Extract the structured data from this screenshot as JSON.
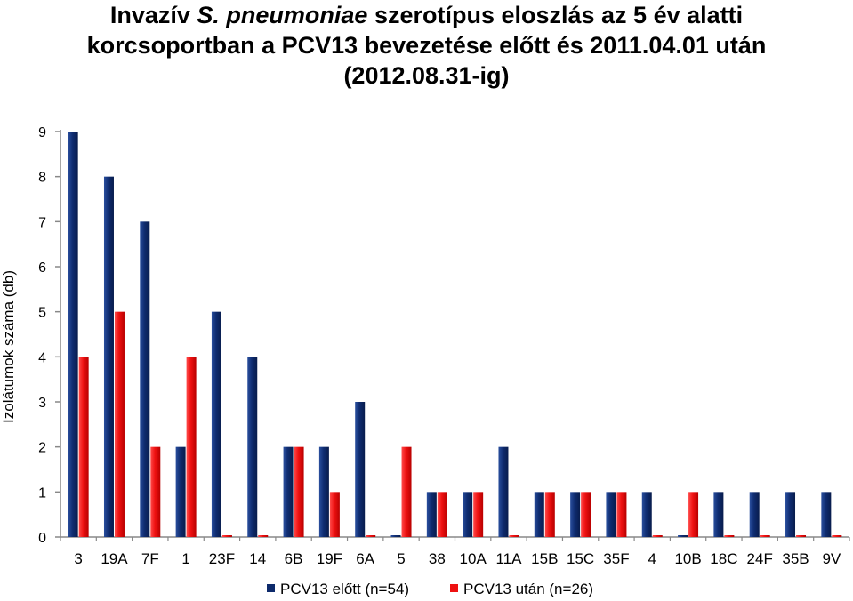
{
  "title": {
    "line1_pre": "Invazív ",
    "line1_italic": "S. pneumoniae",
    "line1_post": " szerotípus eloszlás az 5 év alatti",
    "line2": "korcsoportban a PCV13 bevezetése előtt és 2011.04.01 után",
    "line3": "(2012.08.31-ig)"
  },
  "chart_data": {
    "type": "bar",
    "ylabel": "Izolátumok száma (db)",
    "xlabel": "",
    "ylim": [
      0,
      9
    ],
    "yticks": [
      0,
      1,
      2,
      3,
      4,
      5,
      6,
      7,
      8,
      9
    ],
    "grid": false,
    "legend_position": "bottom",
    "categories": [
      "3",
      "19A",
      "7F",
      "1",
      "23F",
      "14",
      "6B",
      "19F",
      "6A",
      "5",
      "38",
      "10A",
      "11A",
      "15B",
      "15C",
      "35F",
      "4",
      "10B",
      "18C",
      "24F",
      "35B",
      "9V"
    ],
    "series": [
      {
        "name": "PCV13 előtt (n=54)",
        "color": "#0d2a6b",
        "values": [
          9,
          8,
          7,
          2,
          5,
          4,
          2,
          2,
          3,
          0,
          1,
          1,
          2,
          1,
          1,
          1,
          1,
          0,
          1,
          1,
          1,
          1
        ]
      },
      {
        "name": "PCV13 után (n=26)",
        "color": "#ee1111",
        "values": [
          4,
          5,
          2,
          4,
          0,
          0,
          2,
          1,
          0,
          2,
          1,
          1,
          0,
          1,
          1,
          1,
          0,
          1,
          0,
          0,
          0,
          0
        ]
      }
    ]
  }
}
